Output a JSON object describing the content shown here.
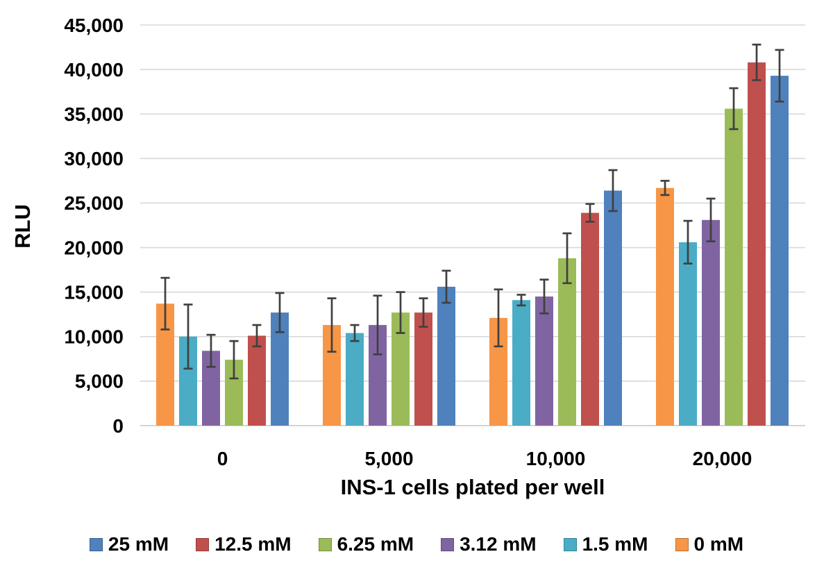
{
  "chart_data": {
    "type": "bar",
    "title": "",
    "xlabel": "INS-1 cells plated per well",
    "ylabel": "RLU",
    "categories": [
      "0",
      "5,000",
      "10,000",
      "20,000"
    ],
    "series": [
      {
        "name": "0 mM",
        "color": "#F79646",
        "values": [
          13700,
          11300,
          12100,
          26700
        ],
        "errors": [
          2900,
          3000,
          3200,
          800
        ]
      },
      {
        "name": "1.5 mM",
        "color": "#4BACC6",
        "values": [
          10000,
          10400,
          14100,
          20600
        ],
        "errors": [
          3600,
          900,
          600,
          2400
        ]
      },
      {
        "name": "3.12 mM",
        "color": "#8064A2",
        "values": [
          8400,
          11300,
          14500,
          23100
        ],
        "errors": [
          1800,
          3300,
          1900,
          2400
        ]
      },
      {
        "name": "6.25 mM",
        "color": "#9BBB59",
        "values": [
          7400,
          12700,
          18800,
          35600
        ],
        "errors": [
          2100,
          2300,
          2800,
          2300
        ]
      },
      {
        "name": "12.5 mM",
        "color": "#C0504D",
        "values": [
          10100,
          12700,
          23900,
          40800
        ],
        "errors": [
          1200,
          1600,
          1000,
          2000
        ]
      },
      {
        "name": "25 mM",
        "color": "#4F81BD",
        "values": [
          12700,
          15600,
          26400,
          39300
        ],
        "errors": [
          2200,
          1800,
          2300,
          2900
        ]
      }
    ],
    "legend": [
      "25 mM",
      "12.5 mM",
      "6.25 mM",
      "3.12 mM",
      "1.5 mM",
      "0 mM"
    ],
    "legend_position": "bottom",
    "grid": true,
    "ylim": [
      0,
      45000
    ],
    "ytick_step": 5000,
    "ytick_labels": [
      "0",
      "5,000",
      "10,000",
      "15,000",
      "20,000",
      "25,000",
      "30,000",
      "35,000",
      "40,000",
      "45,000"
    ],
    "error_bar_color": "#404040",
    "gridline_color": "#D9D9D9",
    "axis_line_color": "#C6C6C6",
    "text_color": "#000000"
  }
}
